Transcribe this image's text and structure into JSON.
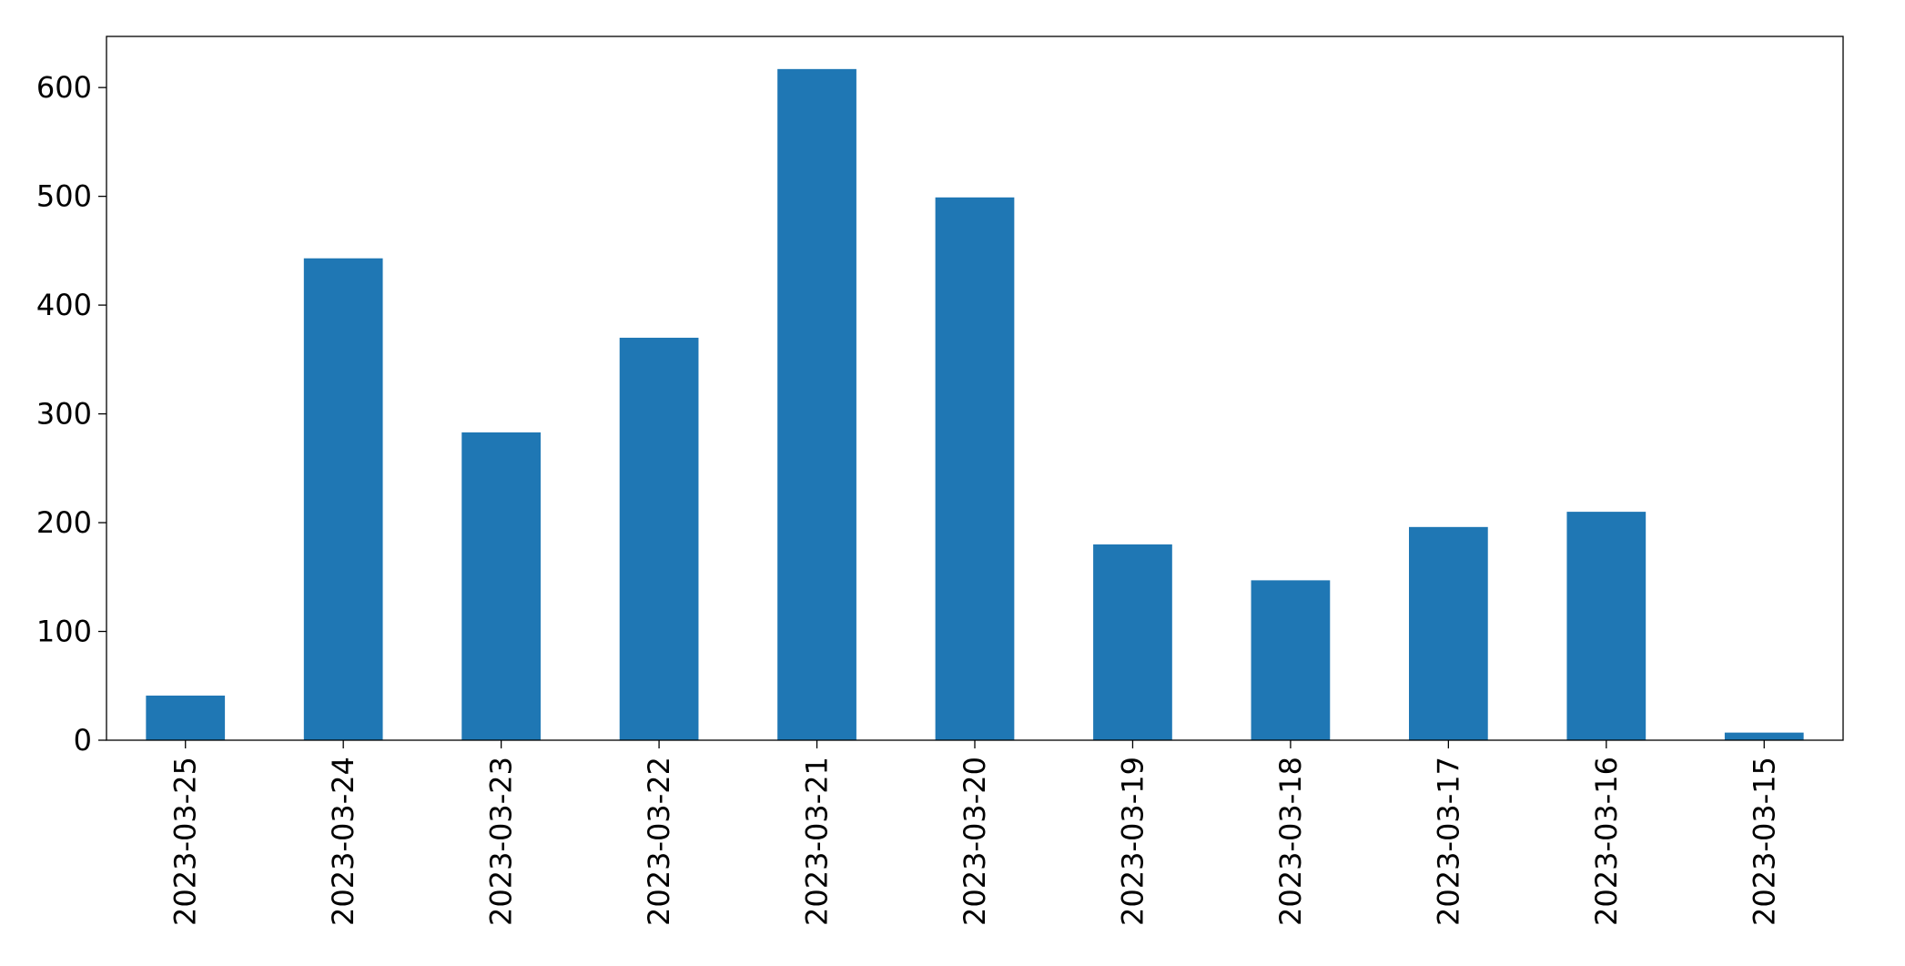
{
  "chart_data": {
    "type": "bar",
    "categories": [
      "2023-03-25",
      "2023-03-24",
      "2023-03-23",
      "2023-03-22",
      "2023-03-21",
      "2023-03-20",
      "2023-03-19",
      "2023-03-18",
      "2023-03-17",
      "2023-03-16",
      "2023-03-15"
    ],
    "values": [
      41,
      443,
      283,
      370,
      617,
      499,
      180,
      147,
      196,
      210,
      7
    ],
    "color": "#1f77b4",
    "ylim": [
      0,
      647
    ],
    "yticks": [
      0,
      100,
      200,
      300,
      400,
      500,
      600
    ],
    "grid": false
  }
}
